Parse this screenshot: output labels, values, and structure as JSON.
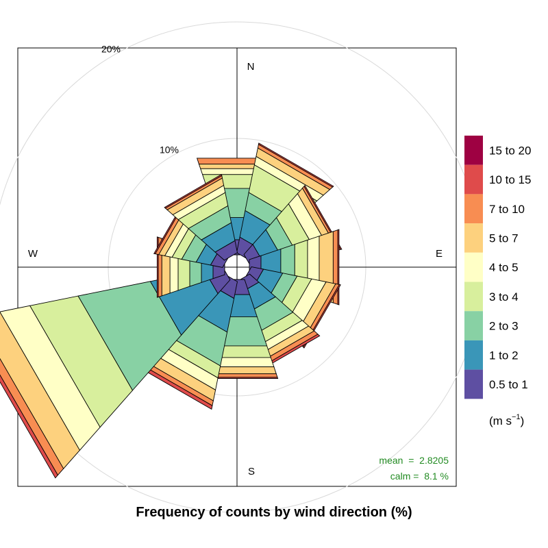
{
  "chart_data": {
    "type": "wind-rose",
    "title": "Frequency of counts by wind direction (%)",
    "compass": {
      "north": "N",
      "east": "E",
      "south": "S",
      "west": "W"
    },
    "radial_axis": {
      "unit": "%",
      "max": 25,
      "ticks": [
        {
          "value": 10,
          "label": "10%"
        },
        {
          "value": 20,
          "label": "20%"
        }
      ],
      "tick_label_direction_deg": 330
    },
    "directions_deg": [
      0,
      30,
      60,
      90,
      120,
      150,
      180,
      210,
      240,
      270,
      300,
      330
    ],
    "speed_bins": [
      {
        "label": "0.5 to 1",
        "color": "#5E4FA2"
      },
      {
        "label": "1 to 2",
        "color": "#3A96B8"
      },
      {
        "label": "2 to 3",
        "color": "#88D1A4"
      },
      {
        "label": "3 to 4",
        "color": "#D8EF9D"
      },
      {
        "label": "4 to 5",
        "color": "#FFFFC6"
      },
      {
        "label": "5 to 7",
        "color": "#FDD17E"
      },
      {
        "label": "7 to 10",
        "color": "#F88D52"
      },
      {
        "label": "10 to 15",
        "color": "#DF4B4B"
      },
      {
        "label": "15 to 20",
        "color": "#9E0142"
      }
    ],
    "legend_unit": {
      "base": "(m s",
      "exponent": "−1",
      "close": ")"
    },
    "legend_position": "right",
    "cumulative_percent_by_direction": [
      [
        1.3,
        3.2,
        5.7,
        6.9,
        7.4,
        7.8,
        8.3,
        8.3,
        8.3
      ],
      [
        1.3,
        3.5,
        5.0,
        7.3,
        8.0,
        8.7,
        9.0,
        9.1,
        9.1
      ],
      [
        1.1,
        2.7,
        4.0,
        5.5,
        6.6,
        7.2,
        7.4,
        7.5,
        7.5
      ],
      [
        1.0,
        2.7,
        3.9,
        5.0,
        6.0,
        7.2,
        7.6,
        7.7,
        7.7
      ],
      [
        1.0,
        2.6,
        3.8,
        5.0,
        6.2,
        7.0,
        7.3,
        7.4,
        7.4
      ],
      [
        1.0,
        2.8,
        4.7,
        5.7,
        6.4,
        7.0,
        7.4,
        7.6,
        7.6
      ],
      [
        1.3,
        3.2,
        5.7,
        6.7,
        7.5,
        8.1,
        8.4,
        8.5,
        8.5
      ],
      [
        1.4,
        4.2,
        7.0,
        8.0,
        9.0,
        9.9,
        10.3,
        10.6,
        10.6
      ],
      [
        1.5,
        6.0,
        12.0,
        16.0,
        18.5,
        20.5,
        21.2,
        21.5,
        21.5
      ],
      [
        1.0,
        2.0,
        3.0,
        4.0,
        4.7,
        5.4,
        5.7,
        5.8,
        5.8
      ],
      [
        1.0,
        2.2,
        3.4,
        4.2,
        4.8,
        5.3,
        5.6,
        5.7,
        5.7
      ],
      [
        1.0,
        2.5,
        3.9,
        5.0,
        5.6,
        6.2,
        6.4,
        6.5,
        6.5
      ]
    ],
    "stats": {
      "mean_label": "mean  =  2.8205",
      "calm_label": "calm =  8.1 %"
    },
    "grid": true
  }
}
